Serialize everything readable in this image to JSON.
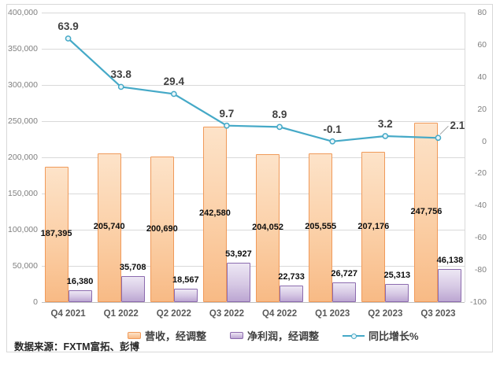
{
  "source_note": "数据来源：FXTM富拓、彭博",
  "colors": {
    "revenue_border": "#f09a5a",
    "profit_border": "#8c6bae",
    "line": "#45a9c7",
    "gridline": "#d9d9d9",
    "axis_text": "#7f7f7f",
    "label_text": "#404040"
  },
  "chart_data": {
    "type": "combo-bar-line",
    "title": "",
    "grid": true,
    "legend_position": "bottom",
    "categories": [
      "Q4 2021",
      "Q1 2022",
      "Q2 2022",
      "Q3 2022",
      "Q4 2022",
      "Q1 2023",
      "Q2 2023",
      "Q3 2023"
    ],
    "series": [
      {
        "name": "营收，经调整",
        "type": "bar",
        "axis": "left",
        "color": "#f09a5a",
        "values": [
          187395,
          205740,
          200690,
          242580,
          204052,
          205555,
          207176,
          247756
        ],
        "labels": [
          "187,395",
          "205,740",
          "200,690",
          "242,580",
          "204,052",
          "205,555",
          "207,176",
          "247,756"
        ]
      },
      {
        "name": "净利润，经调整",
        "type": "bar",
        "axis": "left",
        "color": "#8c6bae",
        "values": [
          16380,
          35708,
          18567,
          53927,
          22733,
          26727,
          25313,
          46138
        ],
        "labels": [
          "16,380",
          "35,708",
          "18,567",
          "53,927",
          "22,733",
          "26,727",
          "25,313",
          "46,138"
        ]
      },
      {
        "name": "同比增长%",
        "type": "line",
        "axis": "right",
        "color": "#45a9c7",
        "values": [
          63.9,
          33.8,
          29.4,
          9.7,
          8.9,
          -0.1,
          3.2,
          2.1
        ],
        "labels": [
          "63.9",
          "33.8",
          "29.4",
          "9.7",
          "8.9",
          "-0.1",
          "3.2",
          "2.1"
        ]
      }
    ],
    "left_axis": {
      "min": 0,
      "max": 400000,
      "tick_values": [
        400000,
        350000,
        300000,
        250000,
        200000,
        150000,
        100000,
        50000,
        0
      ],
      "tick_labels": [
        "400,000",
        "350,000",
        "300,000",
        "250,000",
        "200,000",
        "150,000",
        "100,000",
        "50,000",
        "0"
      ]
    },
    "right_axis": {
      "min": -100,
      "max": 80,
      "tick_values": [
        80,
        60,
        40,
        20,
        0,
        -20,
        -40,
        -60,
        -80,
        -100
      ],
      "tick_labels": [
        "80",
        "60",
        "40",
        "20",
        "0",
        "-20",
        "-40",
        "-60",
        "-80",
        "-100"
      ]
    }
  }
}
